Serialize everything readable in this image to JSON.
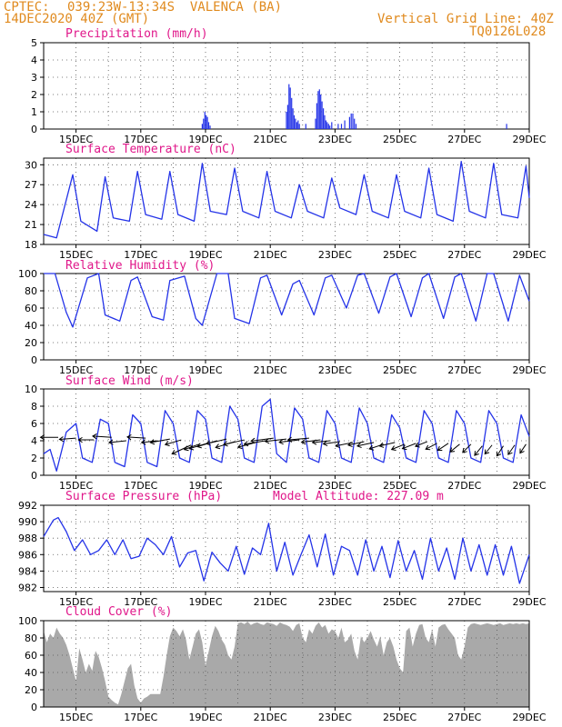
{
  "header": {
    "source": "CPTEC:",
    "location": "039:23W-13:34S  VALENCA (BA)",
    "run": "14DEC2020 40Z (GMT)",
    "grid_note": "Vertical Grid Line: 40Z",
    "code": "TQ0126L028"
  },
  "colors": {
    "header": "#e08a1e",
    "titles": "#e0178a",
    "line": "#2433e8",
    "bars": "#2433e8",
    "cloud": "#a9a9a9"
  },
  "chart_data": [
    {
      "id": "precip",
      "type": "bar",
      "title": "Precipitation (mm/h)",
      "ylim": [
        0,
        5
      ],
      "yticks": [
        0,
        1,
        2,
        3,
        4,
        5
      ],
      "xlim": [
        14,
        29
      ],
      "xticks": [
        "15DEC",
        "17DEC",
        "19DEC",
        "21DEC",
        "23DEC",
        "25DEC",
        "27DEC",
        "29DEC"
      ],
      "x": [
        18.9,
        18.94,
        18.98,
        19.02,
        19.06,
        19.1,
        19.14,
        21.5,
        21.54,
        21.58,
        21.62,
        21.66,
        21.7,
        21.74,
        21.78,
        21.82,
        21.86,
        21.9,
        22.1,
        22.4,
        22.44,
        22.48,
        22.52,
        22.56,
        22.6,
        22.64,
        22.68,
        22.72,
        22.76,
        22.8,
        22.84,
        22.9,
        23.1,
        23.2,
        23.3,
        23.45,
        23.5,
        23.55,
        23.6,
        23.65,
        28.3
      ],
      "values": [
        0.3,
        0.6,
        1.0,
        0.8,
        0.7,
        0.4,
        0.2,
        1.0,
        1.4,
        2.6,
        2.4,
        1.8,
        1.2,
        0.8,
        0.6,
        0.4,
        0.5,
        0.3,
        0.3,
        0.6,
        1.5,
        2.2,
        2.3,
        2.0,
        1.6,
        1.2,
        0.8,
        0.5,
        0.4,
        0.3,
        0.2,
        0.4,
        0.3,
        0.3,
        0.5,
        0.7,
        0.9,
        0.9,
        0.6,
        0.3,
        0.3
      ]
    },
    {
      "id": "temp",
      "type": "line",
      "title": "Surface Temperature (nC)",
      "ylim": [
        18,
        31
      ],
      "yticks": [
        18,
        21,
        24,
        27,
        30
      ],
      "xlim": [
        14,
        29
      ],
      "xticks": [
        "15DEC",
        "17DEC",
        "19DEC",
        "21DEC",
        "23DEC",
        "25DEC",
        "27DEC",
        "29DEC"
      ],
      "x": [
        14.0,
        14.4,
        14.9,
        15.15,
        15.65,
        15.9,
        16.15,
        16.65,
        16.9,
        17.15,
        17.65,
        17.9,
        18.15,
        18.65,
        18.9,
        19.15,
        19.65,
        19.9,
        20.15,
        20.65,
        20.9,
        21.15,
        21.65,
        21.9,
        22.15,
        22.65,
        22.9,
        23.15,
        23.65,
        23.9,
        24.15,
        24.65,
        24.9,
        25.15,
        25.65,
        25.9,
        26.15,
        26.65,
        26.9,
        27.15,
        27.65,
        27.9,
        28.15,
        28.65,
        28.9,
        29.0
      ],
      "values": [
        19.5,
        19.0,
        28.5,
        21.5,
        20.0,
        28.2,
        22.0,
        21.5,
        29.0,
        22.5,
        21.8,
        29.0,
        22.5,
        21.5,
        30.2,
        23.0,
        22.5,
        29.5,
        23.0,
        22.0,
        29.0,
        23.0,
        22.0,
        27.0,
        23.0,
        22.0,
        28.0,
        23.5,
        22.5,
        28.5,
        23.0,
        22.0,
        28.5,
        23.0,
        22.0,
        29.5,
        22.5,
        21.5,
        30.5,
        23.0,
        22.0,
        30.2,
        22.5,
        22.0,
        29.8,
        25.0
      ]
    },
    {
      "id": "rh",
      "type": "line",
      "title": "Relative Humidity (%)",
      "ylim": [
        0,
        100
      ],
      "yticks": [
        0,
        20,
        40,
        60,
        80,
        100
      ],
      "xlim": [
        14,
        29
      ],
      "xticks": [
        "15DEC",
        "17DEC",
        "19DEC",
        "21DEC",
        "23DEC",
        "25DEC",
        "27DEC",
        "29DEC"
      ],
      "x": [
        14.0,
        14.35,
        14.7,
        14.9,
        15.35,
        15.7,
        15.9,
        16.35,
        16.7,
        16.9,
        17.35,
        17.7,
        17.9,
        18.35,
        18.7,
        18.9,
        19.35,
        19.7,
        19.9,
        20.35,
        20.7,
        20.9,
        21.35,
        21.7,
        21.9,
        22.35,
        22.7,
        22.9,
        23.35,
        23.7,
        23.9,
        24.35,
        24.7,
        24.9,
        25.35,
        25.7,
        25.9,
        26.35,
        26.7,
        26.9,
        27.35,
        27.7,
        27.9,
        28.35,
        28.7,
        29.0
      ],
      "values": [
        100,
        100,
        55,
        38,
        95,
        100,
        52,
        45,
        92,
        96,
        50,
        46,
        92,
        97,
        48,
        40,
        100,
        100,
        48,
        42,
        95,
        98,
        52,
        88,
        92,
        52,
        95,
        98,
        60,
        98,
        100,
        54,
        96,
        100,
        50,
        95,
        100,
        48,
        96,
        100,
        45,
        100,
        100,
        45,
        98,
        68
      ]
    },
    {
      "id": "wind",
      "type": "line",
      "title": "Surface Wind (m/s)",
      "ylim": [
        0,
        10
      ],
      "yticks": [
        0,
        2,
        4,
        6,
        8,
        10
      ],
      "xlim": [
        14,
        29
      ],
      "xticks": [
        "15DEC",
        "17DEC",
        "19DEC",
        "21DEC",
        "23DEC",
        "25DEC",
        "27DEC",
        "29DEC"
      ],
      "x": [
        14.0,
        14.2,
        14.4,
        14.7,
        15.0,
        15.2,
        15.5,
        15.75,
        16.0,
        16.2,
        16.5,
        16.75,
        17.0,
        17.2,
        17.5,
        17.75,
        18.0,
        18.2,
        18.5,
        18.75,
        19.0,
        19.2,
        19.5,
        19.75,
        20.0,
        20.2,
        20.5,
        20.75,
        21.0,
        21.2,
        21.5,
        21.75,
        22.0,
        22.2,
        22.5,
        22.75,
        23.0,
        23.2,
        23.5,
        23.75,
        24.0,
        24.2,
        24.5,
        24.75,
        25.0,
        25.2,
        25.5,
        25.75,
        26.0,
        26.2,
        26.5,
        26.75,
        27.0,
        27.2,
        27.5,
        27.75,
        28.0,
        28.2,
        28.5,
        28.75,
        29.0
      ],
      "values": [
        2.5,
        3.0,
        0.5,
        5.0,
        6.0,
        2.0,
        1.5,
        6.5,
        6.0,
        1.5,
        1.0,
        7.0,
        6.0,
        1.5,
        1.0,
        7.5,
        6.0,
        2.0,
        1.5,
        7.5,
        6.5,
        2.0,
        1.5,
        8.0,
        6.5,
        2.0,
        1.5,
        8.0,
        8.8,
        2.5,
        1.5,
        7.8,
        6.5,
        2.0,
        1.5,
        7.5,
        6.0,
        2.0,
        1.5,
        7.8,
        6.0,
        2.0,
        1.5,
        7.0,
        5.5,
        2.0,
        1.5,
        7.5,
        6.0,
        2.0,
        1.5,
        7.5,
        6.0,
        2.0,
        1.5,
        7.5,
        6.0,
        2.0,
        1.5,
        7.0,
        4.5
      ],
      "vector_x": [
        14.45,
        15.0,
        15.55,
        16.1,
        16.55,
        17.15,
        17.5,
        17.9,
        18.25,
        18.55,
        18.8,
        19.05,
        19.35,
        19.65,
        19.9,
        20.2,
        20.55,
        20.85,
        21.1,
        21.5,
        21.9,
        22.2,
        22.55,
        22.85,
        23.15,
        23.55,
        23.9,
        24.2,
        24.5,
        24.85,
        25.15,
        25.5,
        25.85,
        26.15,
        26.5,
        26.85,
        27.2,
        27.55,
        27.85,
        28.2,
        28.55,
        28.9
      ],
      "vector_y": [
        4.4,
        4.3,
        4.1,
        4.4,
        4.0,
        4.3,
        4.0,
        4.2,
        4.1,
        3.5,
        3.6,
        3.7,
        4.0,
        4.2,
        3.9,
        4.1,
        3.8,
        4.0,
        4.3,
        4.2,
        4.1,
        4.3,
        4.1,
        4.0,
        3.9,
        3.8,
        3.9,
        3.8,
        3.6,
        3.8,
        3.6,
        3.7,
        3.9,
        3.7,
        3.7,
        3.6,
        3.6,
        3.4,
        3.5,
        3.4,
        3.5,
        3.6
      ],
      "vector_u": [
        -3.0,
        -2.8,
        -2.6,
        -3.2,
        -2.9,
        -3.1,
        -2.6,
        -3.3,
        -2.7,
        -3.2,
        -2.5,
        -3.0,
        -3.3,
        -3.4,
        -3.2,
        -3.5,
        -3.0,
        -3.6,
        -3.8,
        -3.6,
        -3.4,
        -3.6,
        -3.2,
        -3.0,
        -2.8,
        -2.9,
        -2.7,
        -2.8,
        -2.4,
        -2.6,
        -2.2,
        -2.3,
        -2.0,
        -1.9,
        -1.8,
        -1.6,
        -1.4,
        -1.3,
        -1.2,
        -1.1,
        -1.1,
        -1.0
      ],
      "vector_v": [
        0.0,
        -0.2,
        0.0,
        0.2,
        -0.3,
        0.2,
        -0.3,
        -0.6,
        -0.8,
        -1.5,
        -0.9,
        -0.9,
        -1.0,
        -0.8,
        -1.0,
        -0.8,
        -0.8,
        -0.6,
        -0.5,
        -0.4,
        -0.4,
        -0.3,
        -0.4,
        -0.3,
        -0.4,
        -0.6,
        -0.6,
        -0.6,
        -0.8,
        -0.6,
        -0.9,
        -0.9,
        -0.8,
        -1.0,
        -1.2,
        -1.3,
        -1.4,
        -1.6,
        -1.5,
        -1.7,
        -1.6,
        -1.5
      ]
    },
    {
      "id": "pres",
      "type": "line",
      "title": "Surface Pressure (hPa)",
      "subtitle": "Model Altitude: 227.09 m",
      "ylim": [
        981.5,
        992
      ],
      "yticks": [
        982,
        984,
        986,
        988,
        990,
        992
      ],
      "xlim": [
        14,
        29
      ],
      "xticks": [
        "15DEC",
        "17DEC",
        "19DEC",
        "21DEC",
        "23DEC",
        "25DEC",
        "27DEC",
        "29DEC"
      ],
      "x": [
        14.0,
        14.3,
        14.45,
        14.7,
        14.95,
        15.2,
        15.45,
        15.7,
        15.95,
        16.2,
        16.45,
        16.7,
        16.95,
        17.2,
        17.45,
        17.7,
        17.95,
        18.2,
        18.45,
        18.7,
        18.95,
        19.2,
        19.45,
        19.7,
        19.95,
        20.2,
        20.45,
        20.7,
        20.95,
        21.2,
        21.45,
        21.7,
        21.95,
        22.2,
        22.45,
        22.7,
        22.95,
        23.2,
        23.45,
        23.7,
        23.95,
        24.2,
        24.45,
        24.7,
        24.95,
        25.2,
        25.45,
        25.7,
        25.95,
        26.2,
        26.45,
        26.7,
        26.95,
        27.2,
        27.45,
        27.7,
        27.95,
        28.2,
        28.45,
        28.7,
        29.0
      ],
      "values": [
        988.2,
        990.2,
        990.5,
        988.8,
        986.5,
        987.8,
        986.0,
        986.5,
        987.8,
        986.0,
        987.8,
        985.5,
        985.8,
        988.0,
        987.2,
        986.0,
        988.2,
        984.5,
        986.2,
        986.5,
        982.8,
        986.3,
        985.0,
        984.0,
        987.0,
        983.6,
        986.8,
        986.0,
        989.8,
        984.0,
        987.5,
        983.5,
        986.0,
        988.4,
        984.5,
        988.5,
        983.5,
        987.0,
        986.5,
        983.5,
        987.8,
        984.0,
        987.0,
        983.2,
        987.7,
        984.0,
        986.5,
        983.0,
        988.0,
        984.0,
        986.8,
        983.0,
        988.0,
        984.0,
        987.2,
        983.5,
        987.2,
        983.5,
        987.0,
        982.5,
        986.0
      ]
    },
    {
      "id": "cloud",
      "type": "area",
      "title": "Cloud Cover (%)",
      "ylim": [
        0,
        100
      ],
      "yticks": [
        0,
        20,
        40,
        60,
        80,
        100
      ],
      "xlim": [
        14,
        29
      ],
      "xticks": [
        "15DEC",
        "17DEC",
        "19DEC",
        "21DEC",
        "23DEC",
        "25DEC",
        "27DEC",
        "29DEC"
      ],
      "x": [
        14.0,
        14.1,
        14.2,
        14.3,
        14.4,
        14.5,
        14.6,
        14.7,
        14.8,
        14.9,
        15.0,
        15.1,
        15.2,
        15.3,
        15.4,
        15.5,
        15.6,
        15.7,
        15.8,
        15.9,
        16.0,
        16.1,
        16.2,
        16.3,
        16.4,
        16.5,
        16.6,
        16.7,
        16.8,
        16.9,
        17.0,
        17.1,
        17.2,
        17.3,
        17.4,
        17.5,
        17.6,
        17.7,
        17.8,
        17.9,
        18.0,
        18.1,
        18.2,
        18.3,
        18.4,
        18.5,
        18.6,
        18.7,
        18.8,
        18.9,
        19.0,
        19.1,
        19.2,
        19.3,
        19.4,
        19.5,
        19.6,
        19.7,
        19.8,
        19.9,
        20.0,
        20.1,
        20.2,
        20.3,
        20.4,
        20.5,
        20.6,
        20.7,
        20.8,
        20.9,
        21.0,
        21.1,
        21.2,
        21.3,
        21.4,
        21.5,
        21.6,
        21.7,
        21.8,
        21.9,
        22.0,
        22.1,
        22.2,
        22.3,
        22.4,
        22.5,
        22.6,
        22.7,
        22.8,
        22.9,
        23.0,
        23.1,
        23.2,
        23.3,
        23.4,
        23.5,
        23.6,
        23.7,
        23.8,
        23.9,
        24.0,
        24.1,
        24.2,
        24.3,
        24.4,
        24.5,
        24.6,
        24.7,
        24.8,
        24.9,
        25.0,
        25.1,
        25.2,
        25.3,
        25.4,
        25.5,
        25.6,
        25.7,
        25.8,
        25.9,
        26.0,
        26.1,
        26.2,
        26.3,
        26.4,
        26.5,
        26.6,
        26.7,
        26.8,
        26.9,
        27.0,
        27.1,
        27.2,
        27.3,
        27.4,
        27.5,
        27.6,
        27.7,
        27.8,
        27.9,
        28.0,
        28.1,
        28.2,
        28.3,
        28.4,
        28.5,
        28.6,
        28.7,
        28.8,
        28.9,
        29.0
      ],
      "values": [
        88,
        75,
        85,
        80,
        92,
        85,
        80,
        72,
        60,
        45,
        30,
        68,
        55,
        40,
        50,
        42,
        65,
        58,
        45,
        30,
        12,
        8,
        5,
        3,
        15,
        30,
        45,
        50,
        25,
        10,
        5,
        10,
        12,
        15,
        15,
        15,
        15,
        35,
        60,
        82,
        92,
        88,
        82,
        90,
        78,
        55,
        70,
        85,
        90,
        75,
        48,
        65,
        82,
        94,
        88,
        78,
        72,
        60,
        55,
        70,
        97,
        98,
        96,
        99,
        95,
        97,
        98,
        96,
        95,
        98,
        97,
        96,
        94,
        98,
        96,
        95,
        93,
        88,
        95,
        97,
        80,
        75,
        90,
        85,
        94,
        98,
        92,
        95,
        85,
        90,
        88,
        80,
        92,
        75,
        78,
        85,
        65,
        55,
        82,
        75,
        80,
        88,
        78,
        70,
        82,
        60,
        75,
        80,
        70,
        55,
        45,
        40,
        88,
        92,
        70,
        85,
        95,
        96,
        80,
        75,
        90,
        70,
        92,
        95,
        96,
        90,
        85,
        80,
        60,
        55,
        70,
        92,
        96,
        97,
        96,
        95,
        96,
        97,
        96,
        95,
        96,
        97,
        95,
        96,
        97,
        96,
        97,
        96,
        97,
        96,
        97
      ]
    }
  ]
}
